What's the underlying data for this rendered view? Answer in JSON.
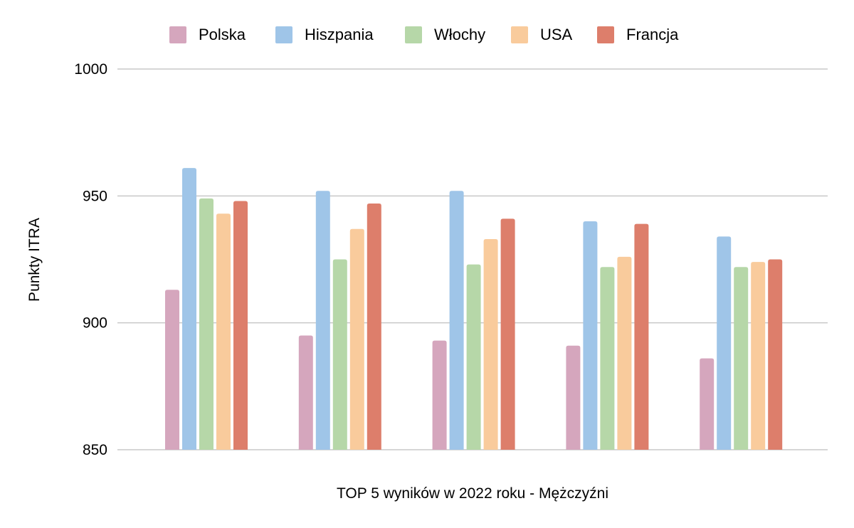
{
  "chart_data": {
    "type": "bar",
    "xlabel": "TOP 5 wyników w 2022 roku - Mężczyźni",
    "ylabel": "Punkty ITRA",
    "ylim": [
      850,
      1000
    ],
    "yticks": [
      "850",
      "900",
      "950",
      "1000"
    ],
    "grid": true,
    "legend_position": "top",
    "group_count": 5,
    "series": [
      {
        "name": "Polska",
        "color": "#d5a6bd",
        "values": [
          913,
          895,
          893,
          891,
          886
        ]
      },
      {
        "name": "Hiszpania",
        "color": "#9fc5e8",
        "values": [
          961,
          952,
          952,
          940,
          934
        ]
      },
      {
        "name": "Włochy",
        "color": "#b6d7a8",
        "values": [
          949,
          925,
          923,
          922,
          922
        ]
      },
      {
        "name": "USA",
        "color": "#f9cb9c",
        "values": [
          943,
          937,
          933,
          926,
          924
        ]
      },
      {
        "name": "Francja",
        "color": "#dd7e6b",
        "values": [
          948,
          947,
          941,
          939,
          925
        ]
      }
    ]
  }
}
